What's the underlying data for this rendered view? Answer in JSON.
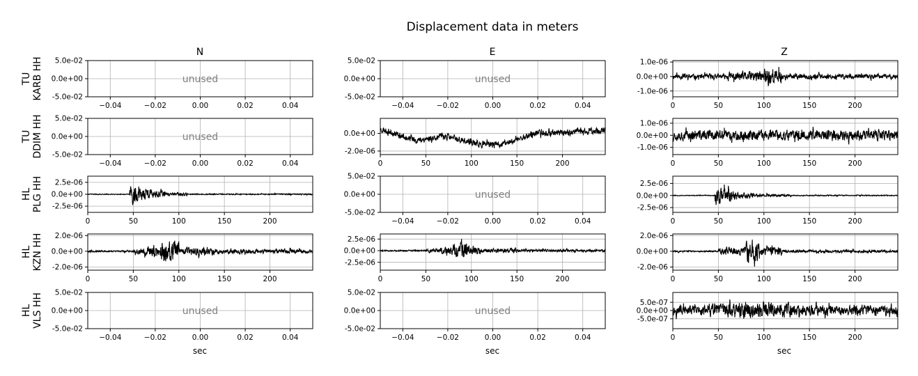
{
  "title": "Displacement data in meters",
  "column_titles": [
    "N",
    "E",
    "Z"
  ],
  "row_labels": [
    [
      "TU",
      "KARB HH"
    ],
    [
      "TU",
      "DDIM HH"
    ],
    [
      "HL",
      "PLG HH"
    ],
    [
      "HL",
      "KZN HH"
    ],
    [
      "HL",
      "VLS HH"
    ]
  ],
  "xlabel": "sec",
  "unused_label": "unused",
  "colors": {
    "trace": "#000000",
    "grid": "#b0b0b0",
    "unused_text": "#808080"
  },
  "chart_data": [
    {
      "row": 0,
      "col": 0,
      "type": "line",
      "unused": true,
      "xlim": [
        -0.05,
        0.05
      ],
      "ylim": [
        -0.05,
        0.05
      ],
      "xticks": [
        -0.04,
        -0.02,
        0.0,
        0.02,
        0.04
      ],
      "xtick_labels": [
        "−0.04",
        "−0.02",
        "0.00",
        "0.02",
        "0.04"
      ],
      "yticks": [
        0.05,
        0.0,
        -0.05
      ],
      "ytick_labels": [
        "5.0e-02",
        "0.0e+00",
        "-5.0e-02"
      ],
      "grid": true
    },
    {
      "row": 0,
      "col": 1,
      "type": "line",
      "unused": true,
      "xlim": [
        -0.05,
        0.05
      ],
      "ylim": [
        -0.05,
        0.05
      ],
      "xticks": [
        -0.04,
        -0.02,
        0.0,
        0.02,
        0.04
      ],
      "xtick_labels": [
        "−0.04",
        "−0.02",
        "0.00",
        "0.02",
        "0.04"
      ],
      "yticks": [
        0.05,
        0.0,
        -0.05
      ],
      "ytick_labels": [
        "5.0e-02",
        "0.0e+00",
        "-5.0e-02"
      ],
      "grid": true
    },
    {
      "row": 0,
      "col": 2,
      "type": "line",
      "unused": false,
      "xlim": [
        0,
        247
      ],
      "ylim": [
        -1.4e-06,
        1.1e-06
      ],
      "xticks": [
        0,
        50,
        100,
        150,
        200
      ],
      "xtick_labels": [
        "0",
        "50",
        "100",
        "150",
        "200"
      ],
      "yticks": [
        1e-06,
        0,
        -1e-06
      ],
      "ytick_labels": [
        "1.0e-06",
        "0.0e+00",
        "-1.0e-06"
      ],
      "grid": true,
      "trace": {
        "x_start": 0,
        "x_end": 247,
        "segments": [
          [
            0,
            60,
            2.3e-07
          ],
          [
            60,
            80,
            4e-07
          ],
          [
            80,
            100,
            4.5e-07
          ],
          [
            100,
            110,
            9e-07
          ],
          [
            110,
            120,
            6e-07
          ],
          [
            120,
            247,
            2.3e-07
          ]
        ],
        "seed": 11
      }
    },
    {
      "row": 1,
      "col": 0,
      "type": "line",
      "unused": true,
      "xlim": [
        -0.05,
        0.05
      ],
      "ylim": [
        -0.05,
        0.05
      ],
      "xticks": [
        -0.04,
        -0.02,
        0.0,
        0.02,
        0.04
      ],
      "xtick_labels": [
        "−0.04",
        "−0.02",
        "0.00",
        "0.02",
        "0.04"
      ],
      "yticks": [
        0.05,
        0.0,
        -0.05
      ],
      "ytick_labels": [
        "5.0e-02",
        "0.0e+00",
        "-5.0e-02"
      ],
      "grid": true
    },
    {
      "row": 1,
      "col": 1,
      "type": "line",
      "unused": false,
      "xlim": [
        0,
        247
      ],
      "ylim": [
        -2.4e-06,
        1.7e-06
      ],
      "xticks": [
        0,
        50,
        100,
        150,
        200
      ],
      "xtick_labels": [
        "0",
        "50",
        "100",
        "150",
        "200"
      ],
      "yticks": [
        0,
        -2e-06
      ],
      "ytick_labels": [
        "0.0e+00",
        "-2.0e-06"
      ],
      "grid": true,
      "trace": {
        "x_start": 0,
        "x_end": 247,
        "baseline": [
          [
            0,
            5e-07
          ],
          [
            40,
            -8e-07
          ],
          [
            70,
            -3e-07
          ],
          [
            110,
            -1.3e-06
          ],
          [
            135,
            -1.2e-06
          ],
          [
            170,
            0
          ],
          [
            247,
            3e-07
          ]
        ],
        "segments": [
          [
            0,
            247,
            4.5e-07
          ]
        ],
        "seed": 23
      }
    },
    {
      "row": 1,
      "col": 2,
      "type": "line",
      "unused": false,
      "xlim": [
        0,
        247
      ],
      "ylim": [
        -1.6e-06,
        1.4e-06
      ],
      "xticks": [
        0,
        50,
        100,
        150,
        200
      ],
      "xtick_labels": [
        "0",
        "50",
        "100",
        "150",
        "200"
      ],
      "yticks": [
        1e-06,
        0,
        -1e-06
      ],
      "ytick_labels": [
        "1.0e-06",
        "0.0e+00",
        "-1.0e-06"
      ],
      "grid": true,
      "trace": {
        "x_start": 0,
        "x_end": 247,
        "segments": [
          [
            0,
            247,
            5.5e-07
          ]
        ],
        "seed": 37
      }
    },
    {
      "row": 2,
      "col": 0,
      "type": "line",
      "unused": false,
      "xlim": [
        0,
        247
      ],
      "ylim": [
        -3.8e-06,
        3.8e-06
      ],
      "xticks": [
        0,
        50,
        100,
        150,
        200
      ],
      "xtick_labels": [
        "0",
        "50",
        "100",
        "150",
        "200"
      ],
      "yticks": [
        2.5e-06,
        0,
        -2.5e-06
      ],
      "ytick_labels": [
        "2.5e-06",
        "0.0e+00",
        "-2.5e-06"
      ],
      "grid": true,
      "trace": {
        "x_start": 0,
        "x_end": 247,
        "segments": [
          [
            0,
            46,
            1.2e-07
          ],
          [
            46,
            55,
            2.5e-06
          ],
          [
            55,
            70,
            1.6e-06
          ],
          [
            70,
            85,
            9e-07
          ],
          [
            85,
            110,
            4e-07
          ],
          [
            110,
            247,
            1.5e-07
          ]
        ],
        "seed": 41
      }
    },
    {
      "row": 2,
      "col": 1,
      "type": "line",
      "unused": true,
      "xlim": [
        -0.05,
        0.05
      ],
      "ylim": [
        -0.05,
        0.05
      ],
      "xticks": [
        -0.04,
        -0.02,
        0.0,
        0.02,
        0.04
      ],
      "xtick_labels": [
        "−0.04",
        "−0.02",
        "0.00",
        "0.02",
        "0.04"
      ],
      "yticks": [
        0.05,
        0.0,
        -0.05
      ],
      "ytick_labels": [
        "5.0e-02",
        "0.0e+00",
        "-5.0e-02"
      ],
      "grid": true
    },
    {
      "row": 2,
      "col": 2,
      "type": "line",
      "unused": false,
      "xlim": [
        0,
        247
      ],
      "ylim": [
        -3.5e-06,
        4e-06
      ],
      "xticks": [
        0,
        50,
        100,
        150,
        200
      ],
      "xtick_labels": [
        "0",
        "50",
        "100",
        "150",
        "200"
      ],
      "yticks": [
        2.5e-06,
        0,
        -2.5e-06
      ],
      "ytick_labels": [
        "2.5e-06",
        "0.0e+00",
        "-2.5e-06"
      ],
      "grid": true,
      "trace": {
        "x_start": 0,
        "x_end": 247,
        "segments": [
          [
            0,
            46,
            1e-07
          ],
          [
            46,
            55,
            2.3e-06
          ],
          [
            55,
            70,
            1.8e-06
          ],
          [
            70,
            90,
            8e-07
          ],
          [
            90,
            130,
            3.5e-07
          ],
          [
            130,
            247,
            1.5e-07
          ]
        ],
        "seed": 53
      }
    },
    {
      "row": 3,
      "col": 0,
      "type": "line",
      "unused": false,
      "xlim": [
        0,
        247
      ],
      "ylim": [
        -2.4e-06,
        2.2e-06
      ],
      "xticks": [
        0,
        50,
        100,
        150,
        200
      ],
      "xtick_labels": [
        "0",
        "50",
        "100",
        "150",
        "200"
      ],
      "yticks": [
        2e-06,
        0,
        -2e-06
      ],
      "ytick_labels": [
        "2.0e-06",
        "0.0e+00",
        "-2.0e-06"
      ],
      "grid": true,
      "trace": {
        "x_start": 0,
        "x_end": 247,
        "segments": [
          [
            0,
            50,
            1.3e-07
          ],
          [
            50,
            60,
            5e-07
          ],
          [
            60,
            80,
            8e-07
          ],
          [
            80,
            100,
            1.6e-06
          ],
          [
            100,
            140,
            6e-07
          ],
          [
            140,
            247,
            3.5e-07
          ]
        ],
        "seed": 67
      }
    },
    {
      "row": 3,
      "col": 1,
      "type": "line",
      "unused": false,
      "xlim": [
        0,
        247
      ],
      "ylim": [
        -4.2e-06,
        3.6e-06
      ],
      "xticks": [
        0,
        50,
        100,
        150,
        200
      ],
      "xtick_labels": [
        "0",
        "50",
        "100",
        "150",
        "200"
      ],
      "yticks": [
        2.5e-06,
        0,
        -2.5e-06
      ],
      "ytick_labels": [
        "2.5e-06",
        "0.0e+00",
        "-2.5e-06"
      ],
      "grid": true,
      "trace": {
        "x_start": 0,
        "x_end": 247,
        "segments": [
          [
            0,
            50,
            2e-07
          ],
          [
            50,
            65,
            6e-07
          ],
          [
            65,
            80,
            1.3e-06
          ],
          [
            80,
            95,
            2.3e-06
          ],
          [
            95,
            110,
            1.2e-06
          ],
          [
            110,
            150,
            6e-07
          ],
          [
            150,
            247,
            3.5e-07
          ]
        ],
        "seed": 79
      }
    },
    {
      "row": 3,
      "col": 2,
      "type": "line",
      "unused": false,
      "xlim": [
        0,
        247
      ],
      "ylim": [
        -2.4e-06,
        2.2e-06
      ],
      "xticks": [
        0,
        50,
        100,
        150,
        200
      ],
      "xtick_labels": [
        "0",
        "50",
        "100",
        "150",
        "200"
      ],
      "yticks": [
        2e-06,
        0,
        -2e-06
      ],
      "ytick_labels": [
        "2.0e-06",
        "0.0e+00",
        "-2.0e-06"
      ],
      "grid": true,
      "trace": {
        "x_start": 0,
        "x_end": 247,
        "segments": [
          [
            0,
            50,
            1.2e-07
          ],
          [
            50,
            80,
            6e-07
          ],
          [
            80,
            95,
            1.8e-06
          ],
          [
            95,
            120,
            7e-07
          ],
          [
            120,
            247,
            2.2e-07
          ]
        ],
        "seed": 83
      }
    },
    {
      "row": 4,
      "col": 0,
      "type": "line",
      "unused": true,
      "xlim": [
        -0.05,
        0.05
      ],
      "ylim": [
        -0.05,
        0.05
      ],
      "xticks": [
        -0.04,
        -0.02,
        0.0,
        0.02,
        0.04
      ],
      "xtick_labels": [
        "−0.04",
        "−0.02",
        "0.00",
        "0.02",
        "0.04"
      ],
      "yticks": [
        0.05,
        0.0,
        -0.05
      ],
      "ytick_labels": [
        "5.0e-02",
        "0.0e+00",
        "-5.0e-02"
      ],
      "grid": true,
      "show_xlabel": true
    },
    {
      "row": 4,
      "col": 1,
      "type": "line",
      "unused": true,
      "xlim": [
        -0.05,
        0.05
      ],
      "ylim": [
        -0.05,
        0.05
      ],
      "xticks": [
        -0.04,
        -0.02,
        0.0,
        0.02,
        0.04
      ],
      "xtick_labels": [
        "−0.04",
        "−0.02",
        "0.00",
        "0.02",
        "0.04"
      ],
      "yticks": [
        0.05,
        0.0,
        -0.05
      ],
      "ytick_labels": [
        "5.0e-02",
        "0.0e+00",
        "-5.0e-02"
      ],
      "grid": true,
      "show_xlabel": true
    },
    {
      "row": 4,
      "col": 2,
      "type": "line",
      "unused": false,
      "xlim": [
        0,
        247
      ],
      "ylim": [
        -1.1e-06,
        1.1e-06
      ],
      "xticks": [
        0,
        50,
        100,
        150,
        200
      ],
      "xtick_labels": [
        "0",
        "50",
        "100",
        "150",
        "200"
      ],
      "yticks": [
        5e-07,
        0,
        -5e-07
      ],
      "ytick_labels": [
        "5.0e-07",
        "0.0e+00",
        "-5.0e-07"
      ],
      "grid": true,
      "show_xlabel": true,
      "trace": {
        "x_start": 0,
        "x_end": 247,
        "segments": [
          [
            0,
            40,
            3.5e-07
          ],
          [
            40,
            60,
            5e-07
          ],
          [
            60,
            130,
            6e-07
          ],
          [
            130,
            247,
            4e-07
          ]
        ],
        "seed": 97
      }
    }
  ]
}
